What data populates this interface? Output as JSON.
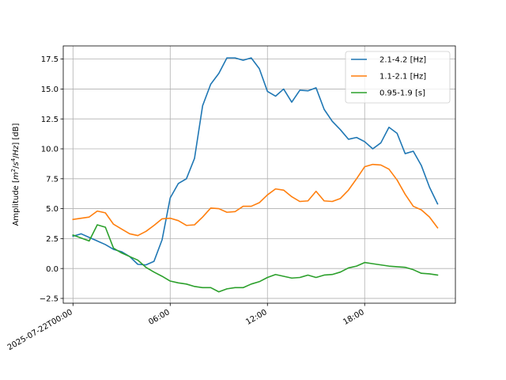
{
  "chart_data": {
    "type": "line",
    "title": "",
    "xlabel": "",
    "ylabel_parts": [
      "Amplitude [",
      "m",
      "2",
      "/",
      "s",
      "4",
      "/",
      "Hz",
      "] [dB]"
    ],
    "x_tick_labels": [
      "2025-07-22T00:00",
      "06:00",
      "12:00",
      "18:00"
    ],
    "x_tick_hours": [
      0,
      6,
      12,
      18
    ],
    "xlim_hours": [
      -0.6,
      23.6
    ],
    "y_ticks": [
      -2.5,
      0.0,
      2.5,
      5.0,
      7.5,
      10.0,
      12.5,
      15.0,
      17.5
    ],
    "y_tick_labels": [
      "−2.5",
      "0.0",
      "2.5",
      "5.0",
      "7.5",
      "10.0",
      "12.5",
      "15.0",
      "17.5"
    ],
    "ylim": [
      -2.9,
      18.6
    ],
    "grid": true,
    "legend_position": "top-right",
    "x_hours": [
      0,
      0.5,
      1,
      1.5,
      2,
      2.5,
      3,
      3.5,
      4,
      4.5,
      5,
      5.5,
      6,
      6.5,
      7,
      7.5,
      8,
      8.5,
      9,
      9.5,
      10,
      10.5,
      11,
      11.5,
      12,
      12.5,
      13,
      13.5,
      14,
      14.5,
      15,
      15.5,
      16,
      16.5,
      17,
      17.5,
      18,
      18.5,
      19,
      19.5,
      20,
      20.5,
      21,
      21.5,
      22,
      22.5
    ],
    "series": [
      {
        "name": "2.1-4.2 [Hz]",
        "color": "#1f77b4",
        "values": [
          2.7,
          2.9,
          2.6,
          2.3,
          2.0,
          1.6,
          1.4,
          1.0,
          0.35,
          0.3,
          0.6,
          2.4,
          5.9,
          7.1,
          7.5,
          9.2,
          13.6,
          15.4,
          16.3,
          17.6,
          17.6,
          17.4,
          17.6,
          16.7,
          14.8,
          14.4,
          15.0,
          13.9,
          14.9,
          14.85,
          15.1,
          13.3,
          12.3,
          11.6,
          10.8,
          10.95,
          10.6,
          10.0,
          10.5,
          11.8,
          11.3,
          9.6,
          9.8,
          8.6,
          6.8,
          5.4
        ]
      },
      {
        "name": "1.1-2.1 [Hz]",
        "color": "#ff7f0e",
        "values": [
          4.1,
          4.2,
          4.3,
          4.8,
          4.65,
          3.7,
          3.3,
          2.9,
          2.75,
          3.1,
          3.6,
          4.15,
          4.2,
          4.0,
          3.6,
          3.65,
          4.3,
          5.05,
          5.0,
          4.7,
          4.75,
          5.2,
          5.2,
          5.5,
          6.15,
          6.65,
          6.55,
          6.0,
          5.6,
          5.65,
          6.45,
          5.65,
          5.6,
          5.85,
          6.55,
          7.5,
          8.5,
          8.7,
          8.65,
          8.3,
          7.4,
          6.2,
          5.2,
          4.9,
          4.3,
          3.4
        ]
      },
      {
        "name": "0.95-1.9 [s]",
        "color": "#2ca02c",
        "values": [
          2.8,
          2.55,
          2.3,
          3.65,
          3.45,
          1.7,
          1.3,
          1.0,
          0.7,
          0.1,
          -0.3,
          -0.65,
          -1.05,
          -1.2,
          -1.3,
          -1.5,
          -1.6,
          -1.6,
          -1.95,
          -1.7,
          -1.6,
          -1.6,
          -1.3,
          -1.1,
          -0.75,
          -0.5,
          -0.65,
          -0.8,
          -0.75,
          -0.55,
          -0.75,
          -0.55,
          -0.5,
          -0.3,
          0.05,
          0.2,
          0.5,
          0.4,
          0.3,
          0.2,
          0.15,
          0.1,
          -0.1,
          -0.4,
          -0.45,
          -0.55
        ]
      }
    ]
  }
}
